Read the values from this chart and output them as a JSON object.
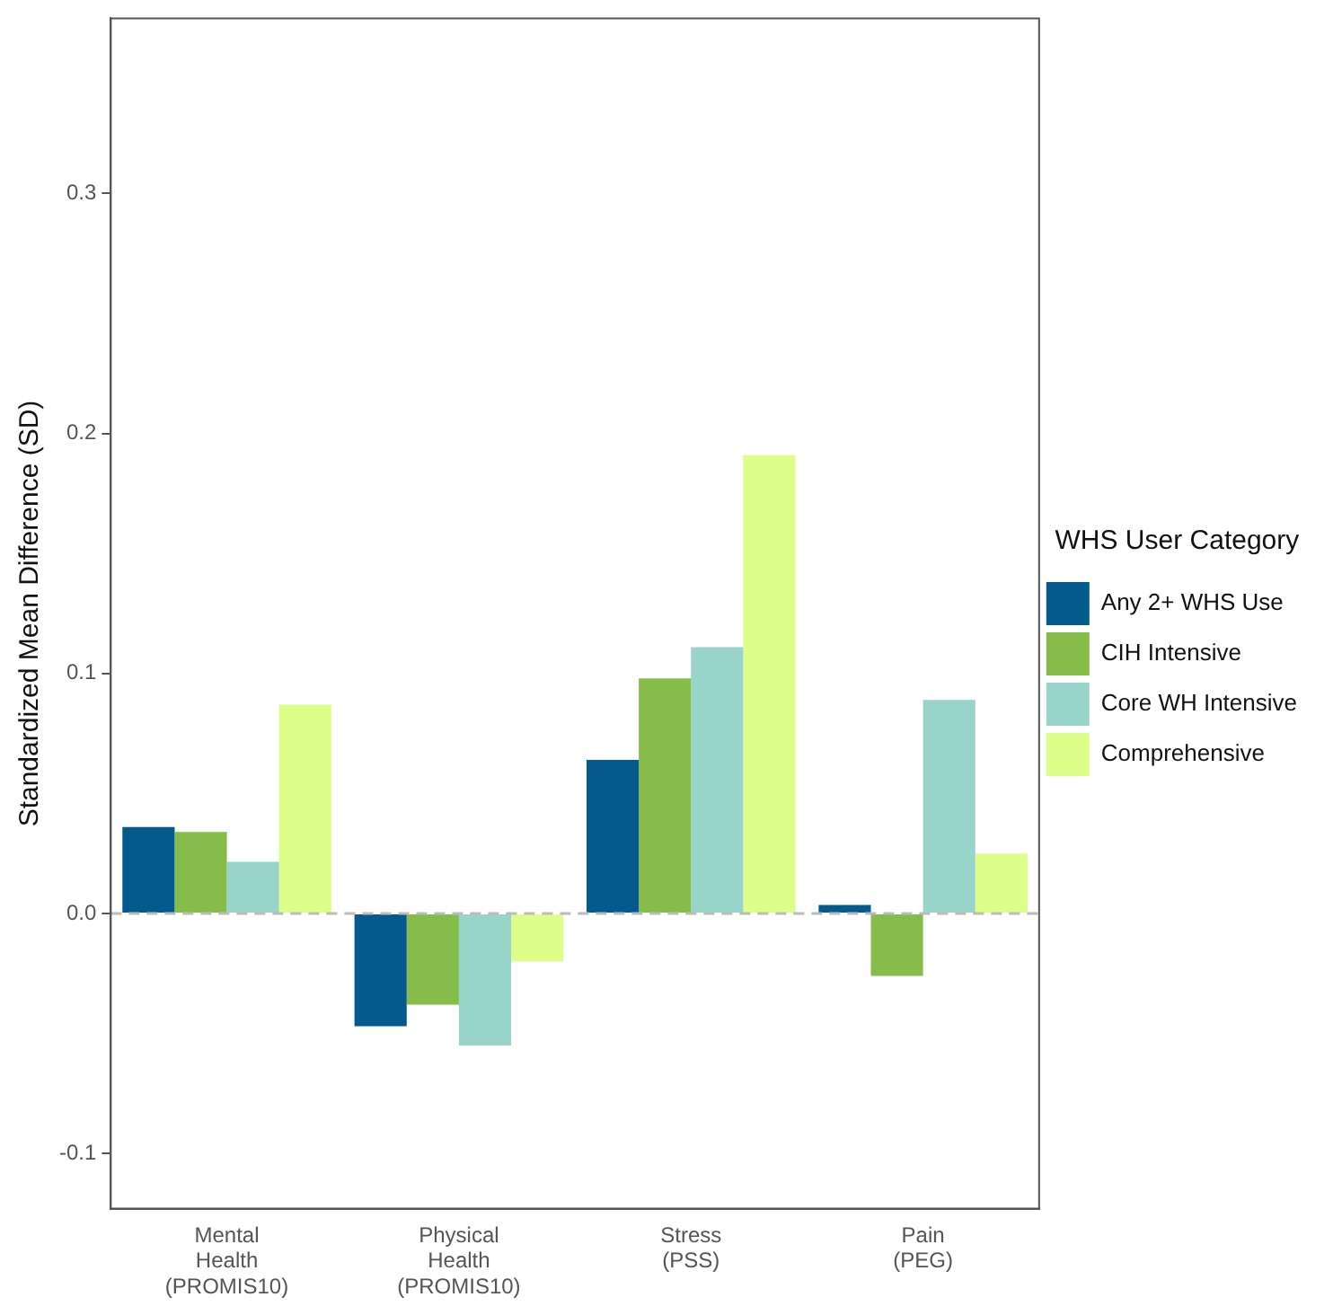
{
  "chart_data": {
    "type": "bar",
    "ylabel": "Standardized Mean Difference (SD)",
    "legend_title": "WHS User Category",
    "categories": [
      "Mental\nHealth\n(PROMIS10)",
      "Physical\nHealth\n(PROMIS10)",
      "Stress\n(PSS)",
      "Pain\n(PEG)"
    ],
    "series": [
      {
        "name": "Any 2+ WHS Use",
        "color": "#045a8d",
        "values": [
          0.036,
          -0.047,
          0.064,
          0.0035
        ]
      },
      {
        "name": "CIH Intensive",
        "color": "#86bc4a",
        "values": [
          0.034,
          -0.038,
          0.098,
          -0.026
        ]
      },
      {
        "name": "Core WH Intensive",
        "color": "#98d4c9",
        "values": [
          0.0215,
          -0.055,
          0.111,
          0.089
        ]
      },
      {
        "name": "Comprehensive",
        "color": "#ddff8a",
        "values": [
          0.087,
          -0.02,
          0.191,
          0.025
        ]
      }
    ],
    "ylim": [
      -0.123,
      0.373
    ],
    "yticks": [
      -0.1,
      {
        "value": 0,
        "label": "0.0"
      },
      0.1,
      0.2,
      0.3
    ],
    "ref_lines": [
      {
        "axis": "y",
        "value": 0,
        "color": "#bbbbbb",
        "line_style": "dashed"
      }
    ],
    "grid": false,
    "legend": "right"
  }
}
